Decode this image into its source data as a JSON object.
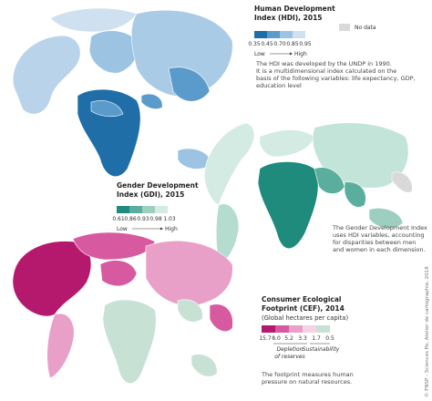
{
  "hdi_map": {
    "title": [
      "Human Development",
      "Index (HDI), 2015"
    ],
    "legend": {
      "labels": [
        "0.35",
        "0.45",
        "0.70",
        "0.85",
        "0.95"
      ],
      "low": "Low",
      "high": "High",
      "no_data": "No data"
    },
    "description": [
      "The HDI was developed by the UNDP in 1990.",
      "It is a multidimensional index calculated on the",
      "basis of the following variables: life expectancy, GDP,",
      "education level"
    ]
  },
  "gdi_map": {
    "title": [
      "Gender Development",
      "Index (GDI), 2015"
    ],
    "legend": {
      "labels": [
        "0.61",
        "0.86",
        "0.93",
        "0.98",
        "1.03"
      ],
      "low": "Low",
      "high": "High"
    },
    "description": [
      "The Gender Development Index",
      "uses HDI variables, accounting",
      "for disparities between men",
      "and women in each dimension."
    ]
  },
  "cef_map": {
    "title": [
      "Consumer Ecological",
      "Footprint (CEF), 2014"
    ],
    "subtitle": "(Global hectares per capita)",
    "legend": {
      "labels": [
        "15.7",
        "8.0",
        "5.2",
        "3.3",
        "1.7",
        "0.5"
      ],
      "depletion": [
        "Depletion",
        "of reserves"
      ],
      "sustainability": "Sustainability"
    },
    "description": [
      "The footprint measures human",
      "pressure on natural resources."
    ]
  },
  "credit": "© FNSP - Sciences Po, Atelier de cartographie, 2018"
}
